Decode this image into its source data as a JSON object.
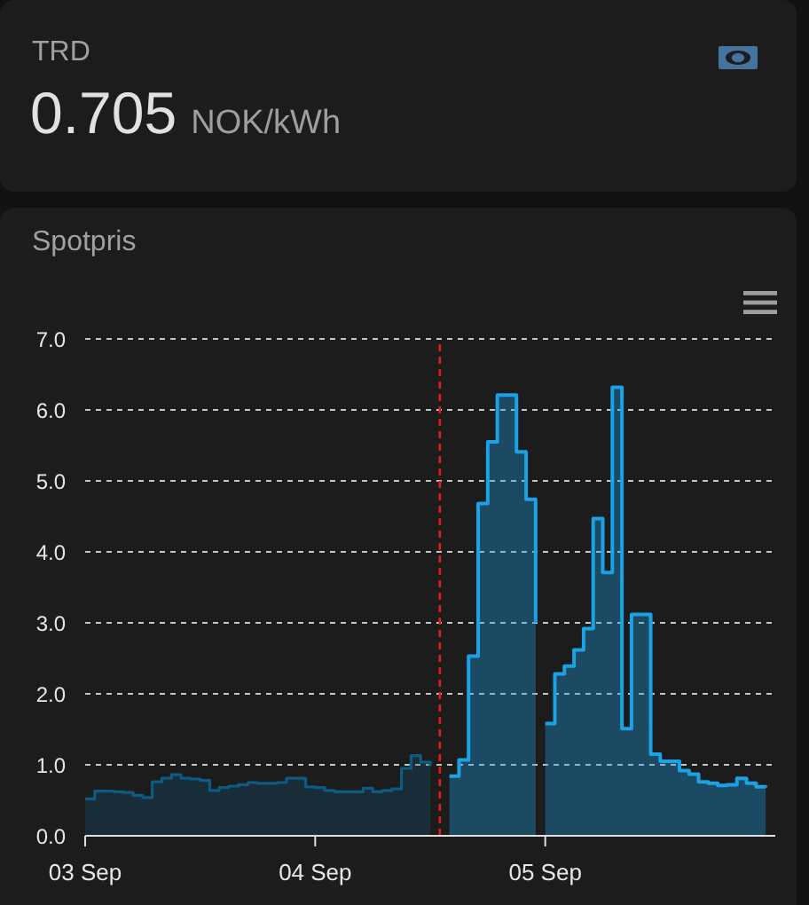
{
  "chart_data": [
    {
      "type": "other",
      "title": "TRD",
      "annotations": [
        "0.705",
        "NOK/kWh"
      ]
    },
    {
      "type": "area",
      "title": "Spotpris",
      "xlim": [
        "--09-03T00:00",
        "--09-06T00:00"
      ],
      "xticks": [
        {
          "value": "--09-03",
          "label": "03 Sep"
        },
        {
          "value": "--09-04",
          "label": "04 Sep"
        },
        {
          "value": "--09-05",
          "label": "05 Sep"
        }
      ],
      "ylim": [
        0,
        7
      ],
      "yticks": [
        {
          "value": 0,
          "label": "0.0"
        },
        {
          "value": 1,
          "label": "1.0"
        },
        {
          "value": 2,
          "label": "2.0"
        },
        {
          "value": 3,
          "label": "3.0"
        },
        {
          "value": 4,
          "label": "4.0"
        },
        {
          "value": 5,
          "label": "5.0"
        },
        {
          "value": 6,
          "label": "6.0"
        },
        {
          "value": 7,
          "label": "7.0"
        }
      ],
      "grid": "y",
      "series": [
        {
          "color": "#0d5a82",
          "x": [
            "--09-03T00:00",
            "--09-03T01:00",
            "--09-03T01:00",
            "--09-03T03:00",
            "--09-03T03:00",
            "--09-03T04:00",
            "--09-03T04:00",
            "--09-03T05:00",
            "--09-03T05:00",
            "--09-03T06:00",
            "--09-03T06:00",
            "--09-03T07:00",
            "--09-03T07:00",
            "--09-03T08:00",
            "--09-03T08:00",
            "--09-03T09:00",
            "--09-03T09:00",
            "--09-03T10:00",
            "--09-03T10:00",
            "--09-03T11:00",
            "--09-03T11:00",
            "--09-03T12:00",
            "--09-03T12:00",
            "--09-03T13:00",
            "--09-03T13:00",
            "--09-03T14:00",
            "--09-03T14:00",
            "--09-03T15:00",
            "--09-03T15:00",
            "--09-03T16:00",
            "--09-03T16:00",
            "--09-03T17:00",
            "--09-03T17:00",
            "--09-03T18:00",
            "--09-03T18:00",
            "--09-03T20:00",
            "--09-03T20:00",
            "--09-03T21:00",
            "--09-03T21:00",
            "--09-03T23:00",
            "--09-03T23:00",
            "--09-04T00:00",
            "--09-04T00:00",
            "--09-04T01:00",
            "--09-04T01:00",
            "--09-04T02:00",
            "--09-04T02:00",
            "--09-04T05:00",
            "--09-04T05:00",
            "--09-04T06:00",
            "--09-04T06:00",
            "--09-04T07:00",
            "--09-04T07:00",
            "--09-04T08:00",
            "--09-04T08:00",
            "--09-04T09:00",
            "--09-04T09:00",
            "--09-04T10:00",
            "--09-04T10:00",
            "--09-04T11:00",
            "--09-04T11:00",
            "--09-04T12:00",
            "--09-04T12:00"
          ],
          "values": [
            0.52,
            0.52,
            0.63,
            0.63,
            0.62,
            0.62,
            0.61,
            0.61,
            0.57,
            0.57,
            0.54,
            0.54,
            0.76,
            0.76,
            0.81,
            0.81,
            0.86,
            0.86,
            0.81,
            0.81,
            0.8,
            0.8,
            0.78,
            0.78,
            0.64,
            0.64,
            0.68,
            0.68,
            0.7,
            0.7,
            0.72,
            0.72,
            0.75,
            0.75,
            0.74,
            0.74,
            0.75,
            0.75,
            0.81,
            0.81,
            0.69,
            0.69,
            0.68,
            0.68,
            0.64,
            0.64,
            0.62,
            0.62,
            0.67,
            0.67,
            0.62,
            0.62,
            0.64,
            0.64,
            0.66,
            0.66,
            0.95,
            0.95,
            1.13,
            1.13,
            1.04,
            1.04,
            0.98
          ]
        },
        {
          "color": "#1ba1e6",
          "x": [
            "--09-04T14:00",
            "--09-04T15:00",
            "--09-04T15:00",
            "--09-04T16:00",
            "--09-04T16:00",
            "--09-04T17:00",
            "--09-04T17:00",
            "--09-04T18:00",
            "--09-04T18:00",
            "--09-04T19:00",
            "--09-04T19:00",
            "--09-04T21:00",
            "--09-04T21:00",
            "--09-04T22:00",
            "--09-04T22:00",
            "--09-04T23:00",
            "--09-04T23:00"
          ],
          "values": [
            0.84,
            0.84,
            1.07,
            1.07,
            2.53,
            2.53,
            4.68,
            4.68,
            5.55,
            5.55,
            6.21,
            6.21,
            5.41,
            5.41,
            4.74,
            4.74,
            3.0
          ]
        },
        {
          "color": "#1ba1e6",
          "x": [
            "--09-05T00:00",
            "--09-05T01:00",
            "--09-05T01:00",
            "--09-05T02:00",
            "--09-05T02:00",
            "--09-05T03:00",
            "--09-05T03:00",
            "--09-05T04:00",
            "--09-05T04:00",
            "--09-05T05:00",
            "--09-05T05:00",
            "--09-05T06:00",
            "--09-05T06:00",
            "--09-05T07:00",
            "--09-05T07:00",
            "--09-05T08:00",
            "--09-05T08:00",
            "--09-05T09:00",
            "--09-05T09:00",
            "--09-05T11:00",
            "--09-05T11:00",
            "--09-05T12:00",
            "--09-05T12:00",
            "--09-05T14:00",
            "--09-05T14:00",
            "--09-05T15:00",
            "--09-05T15:00",
            "--09-05T16:00",
            "--09-05T16:00",
            "--09-05T17:00",
            "--09-05T17:00",
            "--09-05T18:00",
            "--09-05T18:00",
            "--09-05T19:00",
            "--09-05T19:00",
            "--09-05T20:00",
            "--09-05T20:00",
            "--09-05T21:00",
            "--09-05T21:00",
            "--09-05T22:00",
            "--09-05T22:00",
            "--09-05T23:00",
            "--09-05T23:00"
          ],
          "values": [
            1.58,
            1.58,
            2.28,
            2.28,
            2.39,
            2.39,
            2.62,
            2.62,
            2.92,
            2.92,
            4.47,
            4.47,
            3.71,
            3.71,
            6.32,
            6.32,
            1.51,
            1.51,
            3.12,
            3.12,
            1.15,
            1.15,
            1.05,
            1.05,
            0.92,
            0.92,
            0.87,
            0.87,
            0.76,
            0.76,
            0.74,
            0.74,
            0.71,
            0.71,
            0.72,
            0.72,
            0.81,
            0.81,
            0.74,
            0.74,
            0.69,
            0.69,
            0.68
          ]
        }
      ],
      "ref_lines": [
        {
          "axis": "x",
          "value": "--09-04T13:00",
          "color": "#e61919",
          "line_style": "dashed"
        }
      ]
    }
  ]
}
